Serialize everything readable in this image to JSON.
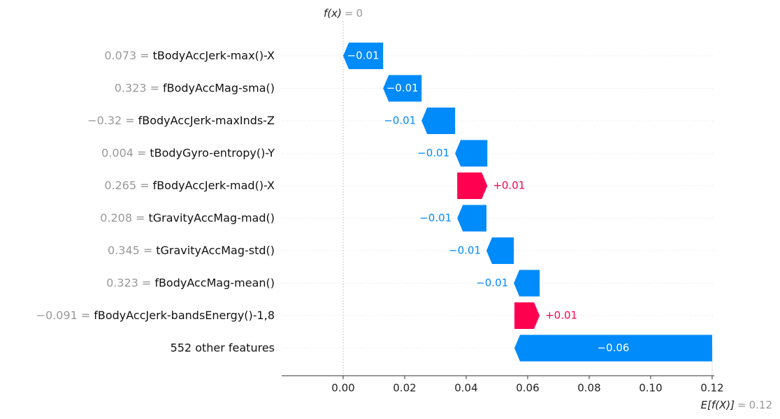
{
  "chart_data": {
    "type": "waterfall",
    "categories": [
      "tBodyAccJerk-max()-X",
      "fBodyAccMag-sma()",
      "fBodyAccJerk-maxInds-Z",
      "tBodyGyro-entropy()-Y",
      "fBodyAccJerk-mad()-X",
      "tGravityAccMag-mad()",
      "tGravityAccMag-std()",
      "fBodyAccMag-mean()",
      "fBodyAccJerk-bandsEnergy()-1,8",
      "552 other features"
    ],
    "feature_values": [
      "0.073",
      "0.323",
      "−0.32",
      "0.004",
      "0.265",
      "0.208",
      "0.345",
      "0.323",
      "−0.091",
      null
    ],
    "separator": "=",
    "values": [
      -0.013,
      -0.0125,
      -0.0109,
      -0.0105,
      0.0098,
      -0.0095,
      -0.0089,
      -0.0084,
      0.0082,
      -0.0643
    ],
    "value_labels": [
      "−0.01",
      "−0.01",
      "−0.01",
      "−0.01",
      "+0.01",
      "−0.01",
      "−0.01",
      "−0.01",
      "+0.01",
      "−0.06"
    ],
    "positive_color": "#ff0051",
    "negative_color": "#008bfb",
    "fx_label": "f(x)",
    "fx_value": 0,
    "base_label": "E[f(X)]",
    "base_value": 0.12,
    "xlim": [
      -0.02,
      0.1207
    ],
    "xticks": [
      {
        "value": 0,
        "label": "0.00"
      },
      {
        "value": 0.02,
        "label": "0.02"
      },
      {
        "value": 0.04,
        "label": "0.04"
      },
      {
        "value": 0.06,
        "label": "0.06"
      },
      {
        "value": 0.08,
        "label": "0.08"
      },
      {
        "value": 0.1,
        "label": "0.10"
      },
      {
        "value": 0.12,
        "label": "0.12"
      }
    ]
  }
}
